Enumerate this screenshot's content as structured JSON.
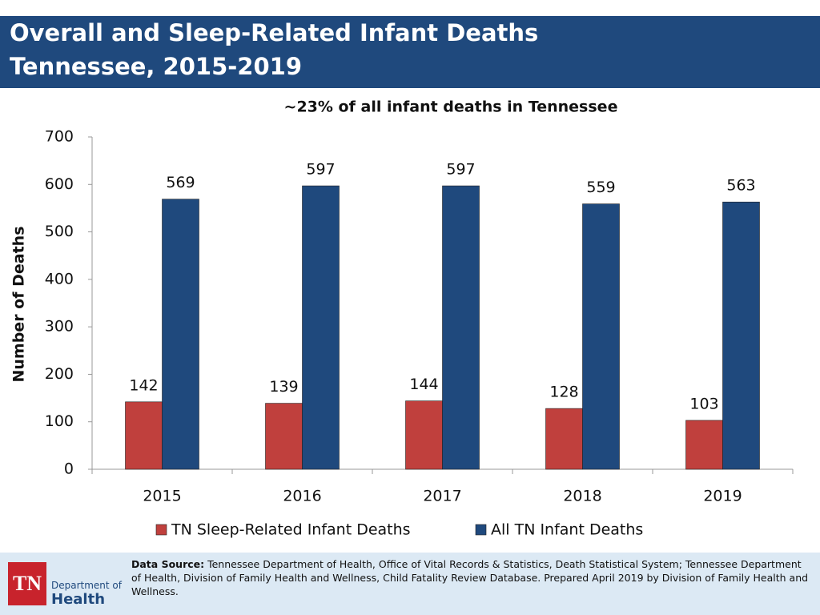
{
  "slide": {
    "title_lines": [
      "Overall and Sleep-Related Infant Deaths",
      "Tennessee, 2015-2019"
    ],
    "source_label": "Data Source:",
    "source_text": "Tennessee Department of Health, Office of Vital Records & Statistics, Death Statistical System; Tennessee Department of Health, Division of Family Health and Wellness, Child Fatality Review Database.  Prepared April 2019 by Division of Family Health and Wellness.",
    "logo": {
      "mark": "TN",
      "line1": "Department of",
      "line2": "Health"
    }
  },
  "chart_data": {
    "type": "bar",
    "title": "~23% of all infant deaths in Tennessee",
    "y_label": "Number of Deaths",
    "categories": [
      "2015",
      "2016",
      "2017",
      "2018",
      "2019"
    ],
    "series": [
      {
        "name": "TN Sleep-Related Infant Deaths",
        "color": "#c0403d",
        "values": [
          142,
          139,
          144,
          128,
          103
        ]
      },
      {
        "name": "All TN Infant Deaths",
        "color": "#1f497d",
        "values": [
          569,
          597,
          597,
          559,
          563
        ]
      }
    ],
    "ylim": [
      0,
      700
    ],
    "yticks": [
      0,
      100,
      200,
      300,
      400,
      500,
      600,
      700
    ],
    "legend": "bottom"
  }
}
